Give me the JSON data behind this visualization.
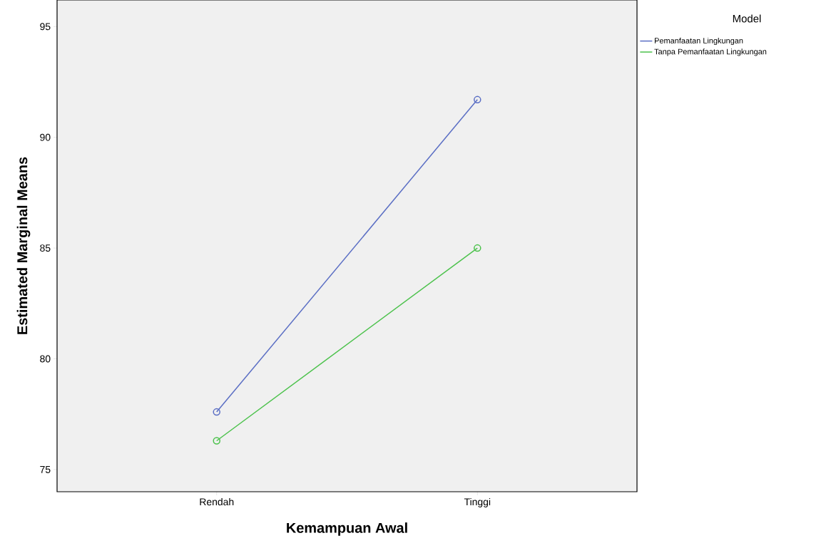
{
  "chart_data": {
    "type": "line",
    "xlabel": "Kemampuan Awal",
    "ylabel": "Estimated Marginal Means",
    "legend_title": "Model",
    "categories": [
      "Rendah",
      "Tinggi"
    ],
    "series": [
      {
        "name": "Pemanfaatan Lingkungan",
        "color": "#5a6ec4",
        "values": [
          77.6,
          91.7
        ]
      },
      {
        "name": "Tanpa Pemanfaatan Lingkungan",
        "color": "#4cc24c",
        "values": [
          76.3,
          85.0
        ]
      }
    ],
    "ylim": [
      74,
      96.2
    ],
    "yticks": [
      75,
      80,
      85,
      90,
      95
    ],
    "grid": false,
    "legend": "top right",
    "marker": "circle",
    "line_style": "solid"
  }
}
